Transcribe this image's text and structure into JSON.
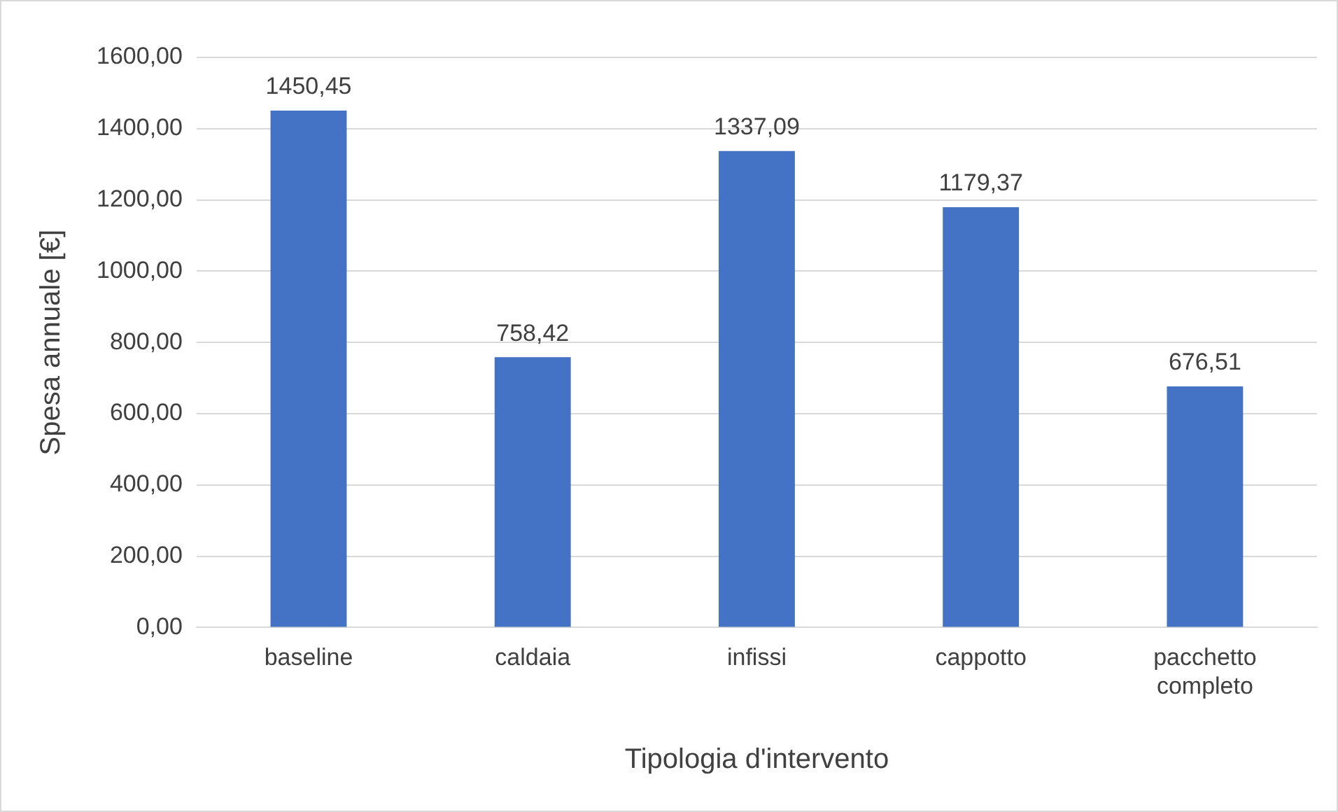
{
  "chart_data": {
    "type": "bar",
    "xlabel": "Tipologia d'intervento",
    "ylabel": "Spesa annuale [€]",
    "categories": [
      "baseline",
      "caldaia",
      "infissi",
      "cappotto",
      "pacchetto completo"
    ],
    "values": [
      1450.45,
      758.42,
      1337.09,
      1179.37,
      676.51
    ],
    "value_labels": [
      "1450,45",
      "758,42",
      "1337,09",
      "1179,37",
      "676,51"
    ],
    "color": "#4472c4",
    "ylim": [
      0,
      1600
    ],
    "yticks": [
      {
        "value": 0,
        "label": "0,00"
      },
      {
        "value": 200,
        "label": "200,00"
      },
      {
        "value": 400,
        "label": "400,00"
      },
      {
        "value": 600,
        "label": "600,00"
      },
      {
        "value": 800,
        "label": "800,00"
      },
      {
        "value": 1000,
        "label": "1000,00"
      },
      {
        "value": 1200,
        "label": "1200,00"
      },
      {
        "value": 1400,
        "label": "1400,00"
      },
      {
        "value": 1600,
        "label": "1600,00"
      }
    ],
    "grid": "y",
    "legend": false
  }
}
